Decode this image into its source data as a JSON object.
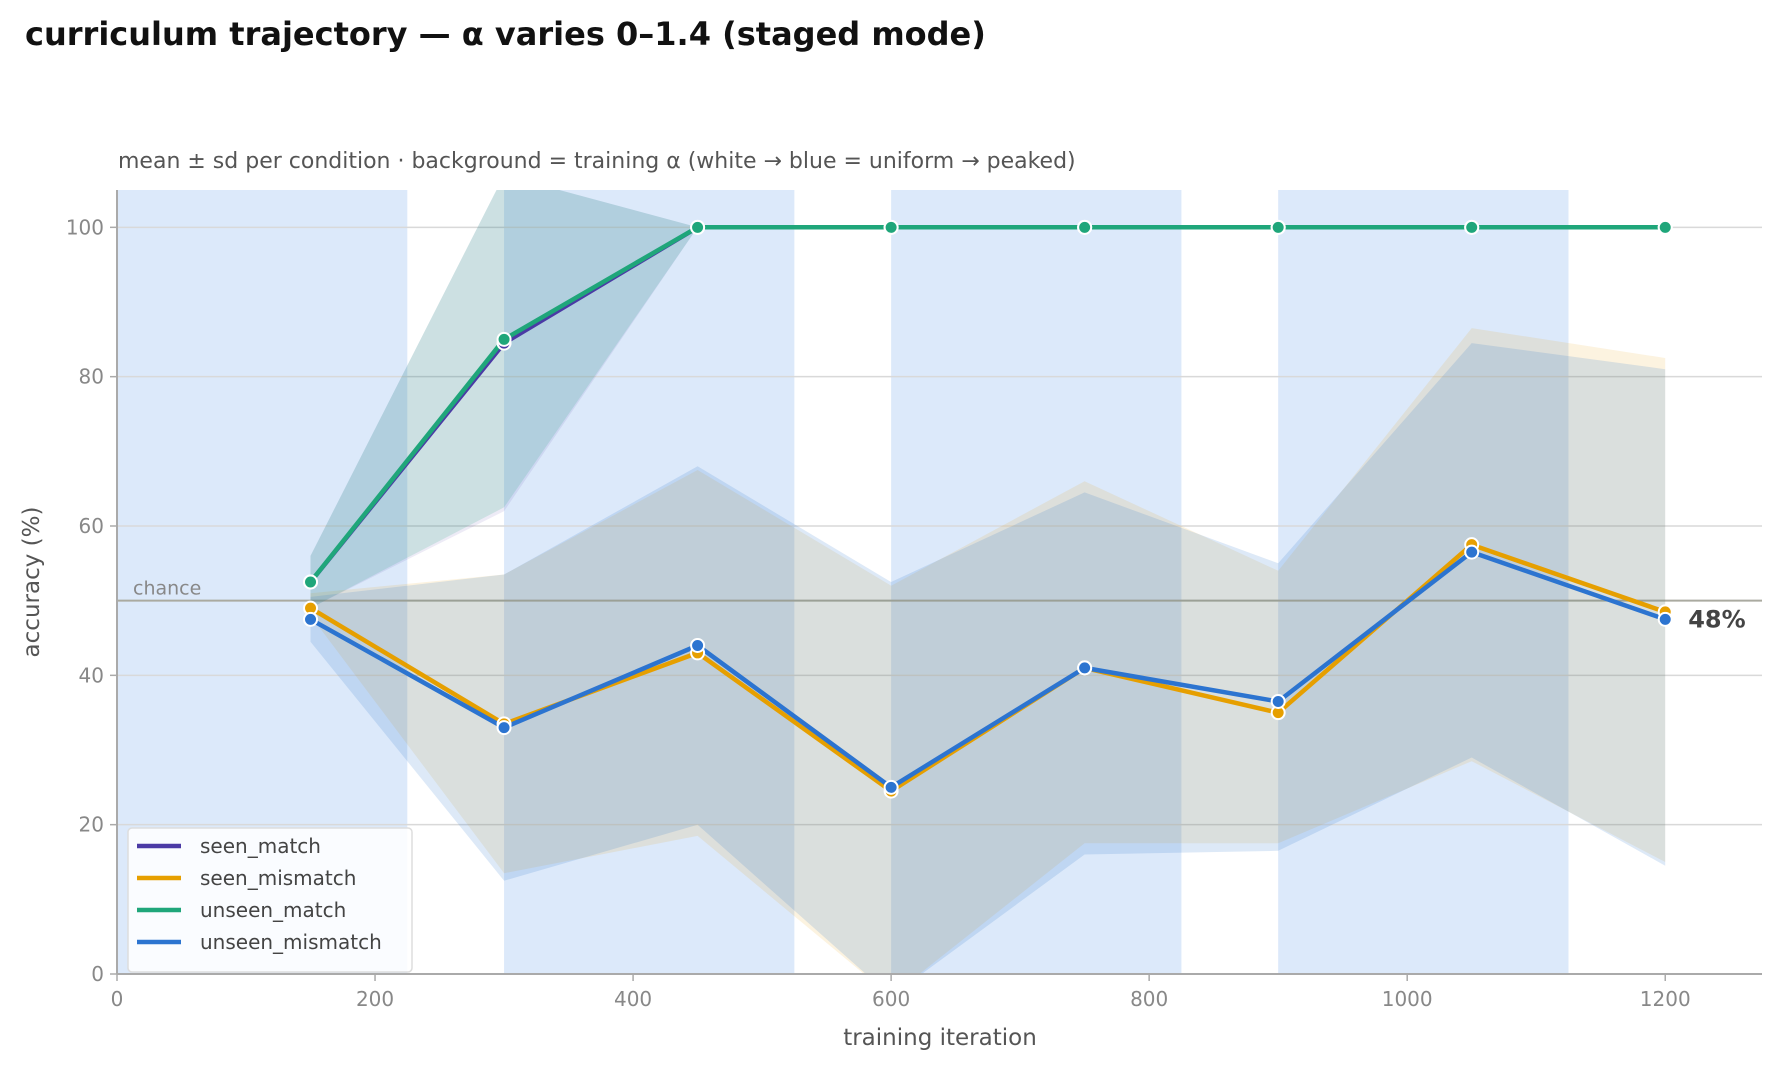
{
  "chart_data": {
    "type": "line",
    "title": "curriculum trajectory — α varies 0–1.4 (staged mode)",
    "subtitle": "mean ± sd per condition · background = training α (white → blue = uniform → peaked)",
    "xlabel": "training iteration",
    "ylabel": "accuracy (%)",
    "xlim": [
      0,
      1275
    ],
    "ylim": [
      0,
      105
    ],
    "x_ticks": [
      0,
      200,
      400,
      600,
      800,
      1000,
      1200
    ],
    "y_ticks": [
      0,
      20,
      40,
      60,
      80,
      100
    ],
    "grid": "horizontal",
    "legend_position": "bottom-left",
    "chance": {
      "value": 50,
      "label": "chance"
    },
    "end_label": "48%",
    "background_bands": [
      {
        "from": 0,
        "to": 225,
        "color": "#dce9fa"
      },
      {
        "from": 300,
        "to": 525,
        "color": "#dce9fa"
      },
      {
        "from": 600,
        "to": 825,
        "color": "#dce9fa"
      },
      {
        "from": 900,
        "to": 1125,
        "color": "#dce9fa"
      }
    ],
    "x": [
      150,
      300,
      450,
      600,
      750,
      900,
      1050,
      1200
    ],
    "series": [
      {
        "name": "seen_match",
        "color": "#4b3aa5",
        "values": [
          52.5,
          84.5,
          100,
          100,
          100,
          100,
          100,
          100
        ],
        "lower": [
          49,
          62,
          100,
          100,
          100,
          100,
          100,
          100
        ],
        "upper": [
          56,
          107,
          100,
          100,
          100,
          100,
          100,
          100
        ]
      },
      {
        "name": "seen_mismatch",
        "color": "#e69f00",
        "values": [
          49,
          33.5,
          43,
          24.5,
          41,
          35,
          57.5,
          48.5
        ],
        "lower": [
          48,
          13.5,
          18.5,
          -3,
          17.5,
          17.5,
          28.5,
          15
        ],
        "upper": [
          51,
          53.5,
          67.5,
          52,
          66,
          54,
          86.5,
          82.5
        ]
      },
      {
        "name": "unseen_match",
        "color": "#1fa67a",
        "values": [
          52.5,
          85,
          100,
          100,
          100,
          100,
          100,
          100
        ],
        "lower": [
          49,
          62.5,
          100,
          100,
          100,
          100,
          100,
          100
        ],
        "upper": [
          56,
          107,
          100,
          100,
          100,
          100,
          100,
          100
        ]
      },
      {
        "name": "unseen_mismatch",
        "color": "#2c74d0",
        "values": [
          47.5,
          33,
          44,
          25,
          41,
          36.5,
          56.5,
          47.5
        ],
        "lower": [
          44.5,
          12.5,
          20,
          -3,
          16,
          16.5,
          29,
          14.5
        ],
        "upper": [
          50.5,
          53.5,
          68,
          52.5,
          64.5,
          55,
          84.5,
          81
        ]
      }
    ]
  }
}
